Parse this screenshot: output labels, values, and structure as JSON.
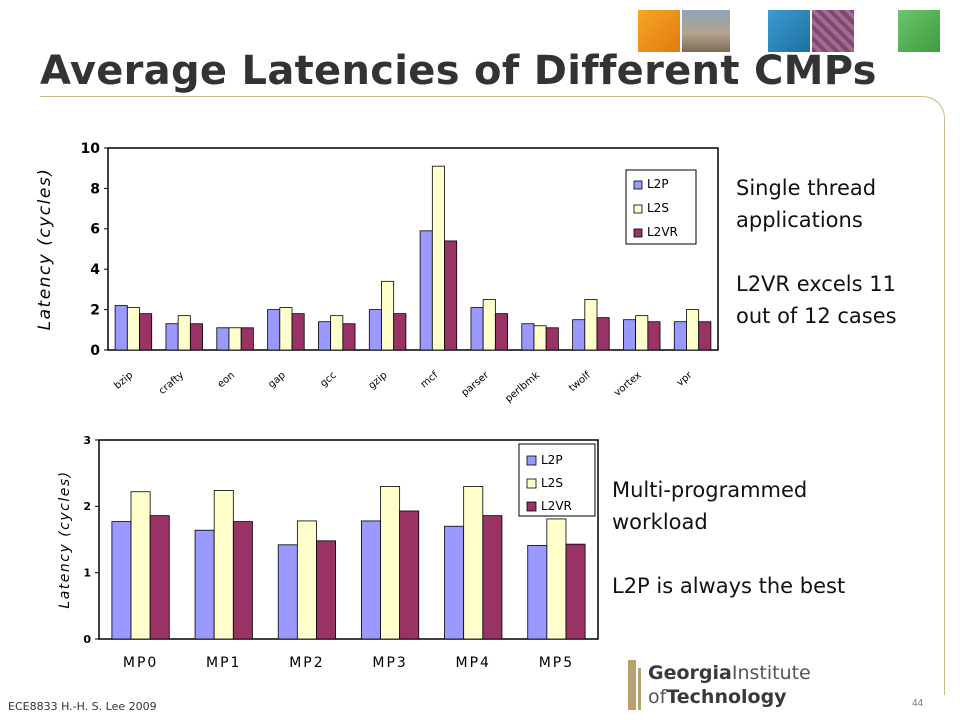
{
  "slide": {
    "title": "Average Latencies of Different CMPs",
    "footer": "ECE8833 H.-H. S. Lee 2009",
    "page_number": "44",
    "notes_top": [
      "Single thread",
      "applications",
      "",
      "L2VR excels 11",
      "out of 12 cases"
    ],
    "notes_bottom": [
      "Multi-programmed",
      "workload",
      "",
      "L2P is always the best"
    ],
    "logo_line1": "Georgia",
    "logo_line1b": "Institute",
    "logo_line2": "of",
    "logo_line2b": "Technology",
    "colors": {
      "l2p": "#9999ff",
      "l2s": "#ffffcc",
      "l2vr": "#993366"
    }
  },
  "chart_data": [
    {
      "type": "bar",
      "ylabel": "Latency (cycles)",
      "ylim": [
        0,
        10
      ],
      "yticks": [
        "0",
        "2",
        "4",
        "6",
        "8",
        "10"
      ],
      "categories": [
        "bzip",
        "crafty",
        "eon",
        "gap",
        "gcc",
        "gzip",
        "mcf",
        "parser",
        "perlbmk",
        "twolf",
        "vortex",
        "vpr"
      ],
      "series": [
        {
          "name": "L2P",
          "values": [
            2.2,
            1.3,
            1.1,
            2.0,
            1.4,
            2.0,
            5.9,
            2.1,
            1.3,
            1.5,
            1.5,
            1.4
          ]
        },
        {
          "name": "L2S",
          "values": [
            2.1,
            1.7,
            1.1,
            2.1,
            1.7,
            3.4,
            9.1,
            2.5,
            1.2,
            2.5,
            1.7,
            2.0
          ]
        },
        {
          "name": "L2VR",
          "values": [
            1.8,
            1.3,
            1.1,
            1.8,
            1.3,
            1.8,
            5.4,
            1.8,
            1.1,
            1.6,
            1.4,
            1.4
          ]
        }
      ],
      "legend": "top-right"
    },
    {
      "type": "bar",
      "ylabel": "Latency (cycles)",
      "ylim": [
        0,
        3
      ],
      "yticks": [
        "0",
        "1",
        "2",
        "3"
      ],
      "categories": [
        "MP0",
        "MP1",
        "MP2",
        "MP3",
        "MP4",
        "MP5"
      ],
      "series": [
        {
          "name": "L2P",
          "values": [
            1.77,
            1.64,
            1.42,
            1.78,
            1.7,
            1.41
          ]
        },
        {
          "name": "L2S",
          "values": [
            2.22,
            2.24,
            1.78,
            2.3,
            2.3,
            1.81
          ]
        },
        {
          "name": "L2VR",
          "values": [
            1.86,
            1.77,
            1.48,
            1.93,
            1.86,
            1.43
          ]
        }
      ],
      "legend": "top-right"
    }
  ]
}
